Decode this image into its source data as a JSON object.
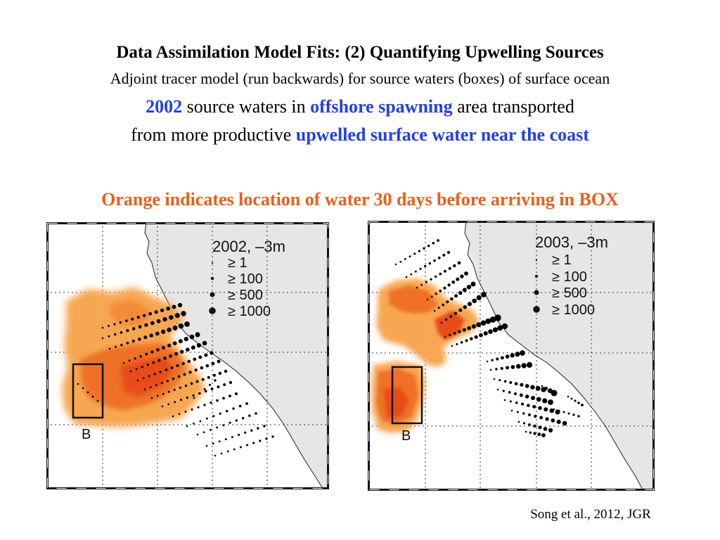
{
  "slide": {
    "title": "Data Assimilation Model Fits: (2) Quantifying Upwelling Sources",
    "subtitle": "Adjoint tracer model (run backwards) for source waters (boxes) of surface ocean",
    "line3": {
      "year": "2002",
      "text_a": " source waters in ",
      "highlight": "offshore spawning",
      "text_b": " area transported"
    },
    "line4": {
      "text_a": "from more productive ",
      "highlight": "upwelled surface water near the coast"
    },
    "orange_note": "Orange indicates location of water 30 days before arriving in BOX",
    "citation": "Song et al., 2012, JGR"
  },
  "colors": {
    "highlight_blue": "#2340e6",
    "note_orange": "#e8601c",
    "land_gray": "#e6e6e6",
    "tracer_light": "#f7a24a",
    "tracer_dark": "#e8420c"
  },
  "maps": [
    {
      "id": "2002",
      "legend_title": "2002, –3m",
      "legend_items": [
        "≥ 1",
        "≥ 100",
        "≥ 500",
        "≥ 1000"
      ],
      "box_label": "B"
    },
    {
      "id": "2003",
      "legend_title": "2003, –3m",
      "legend_items": [
        "≥ 1",
        "≥ 100",
        "≥ 500",
        "≥ 1000"
      ],
      "box_label": "B"
    }
  ]
}
